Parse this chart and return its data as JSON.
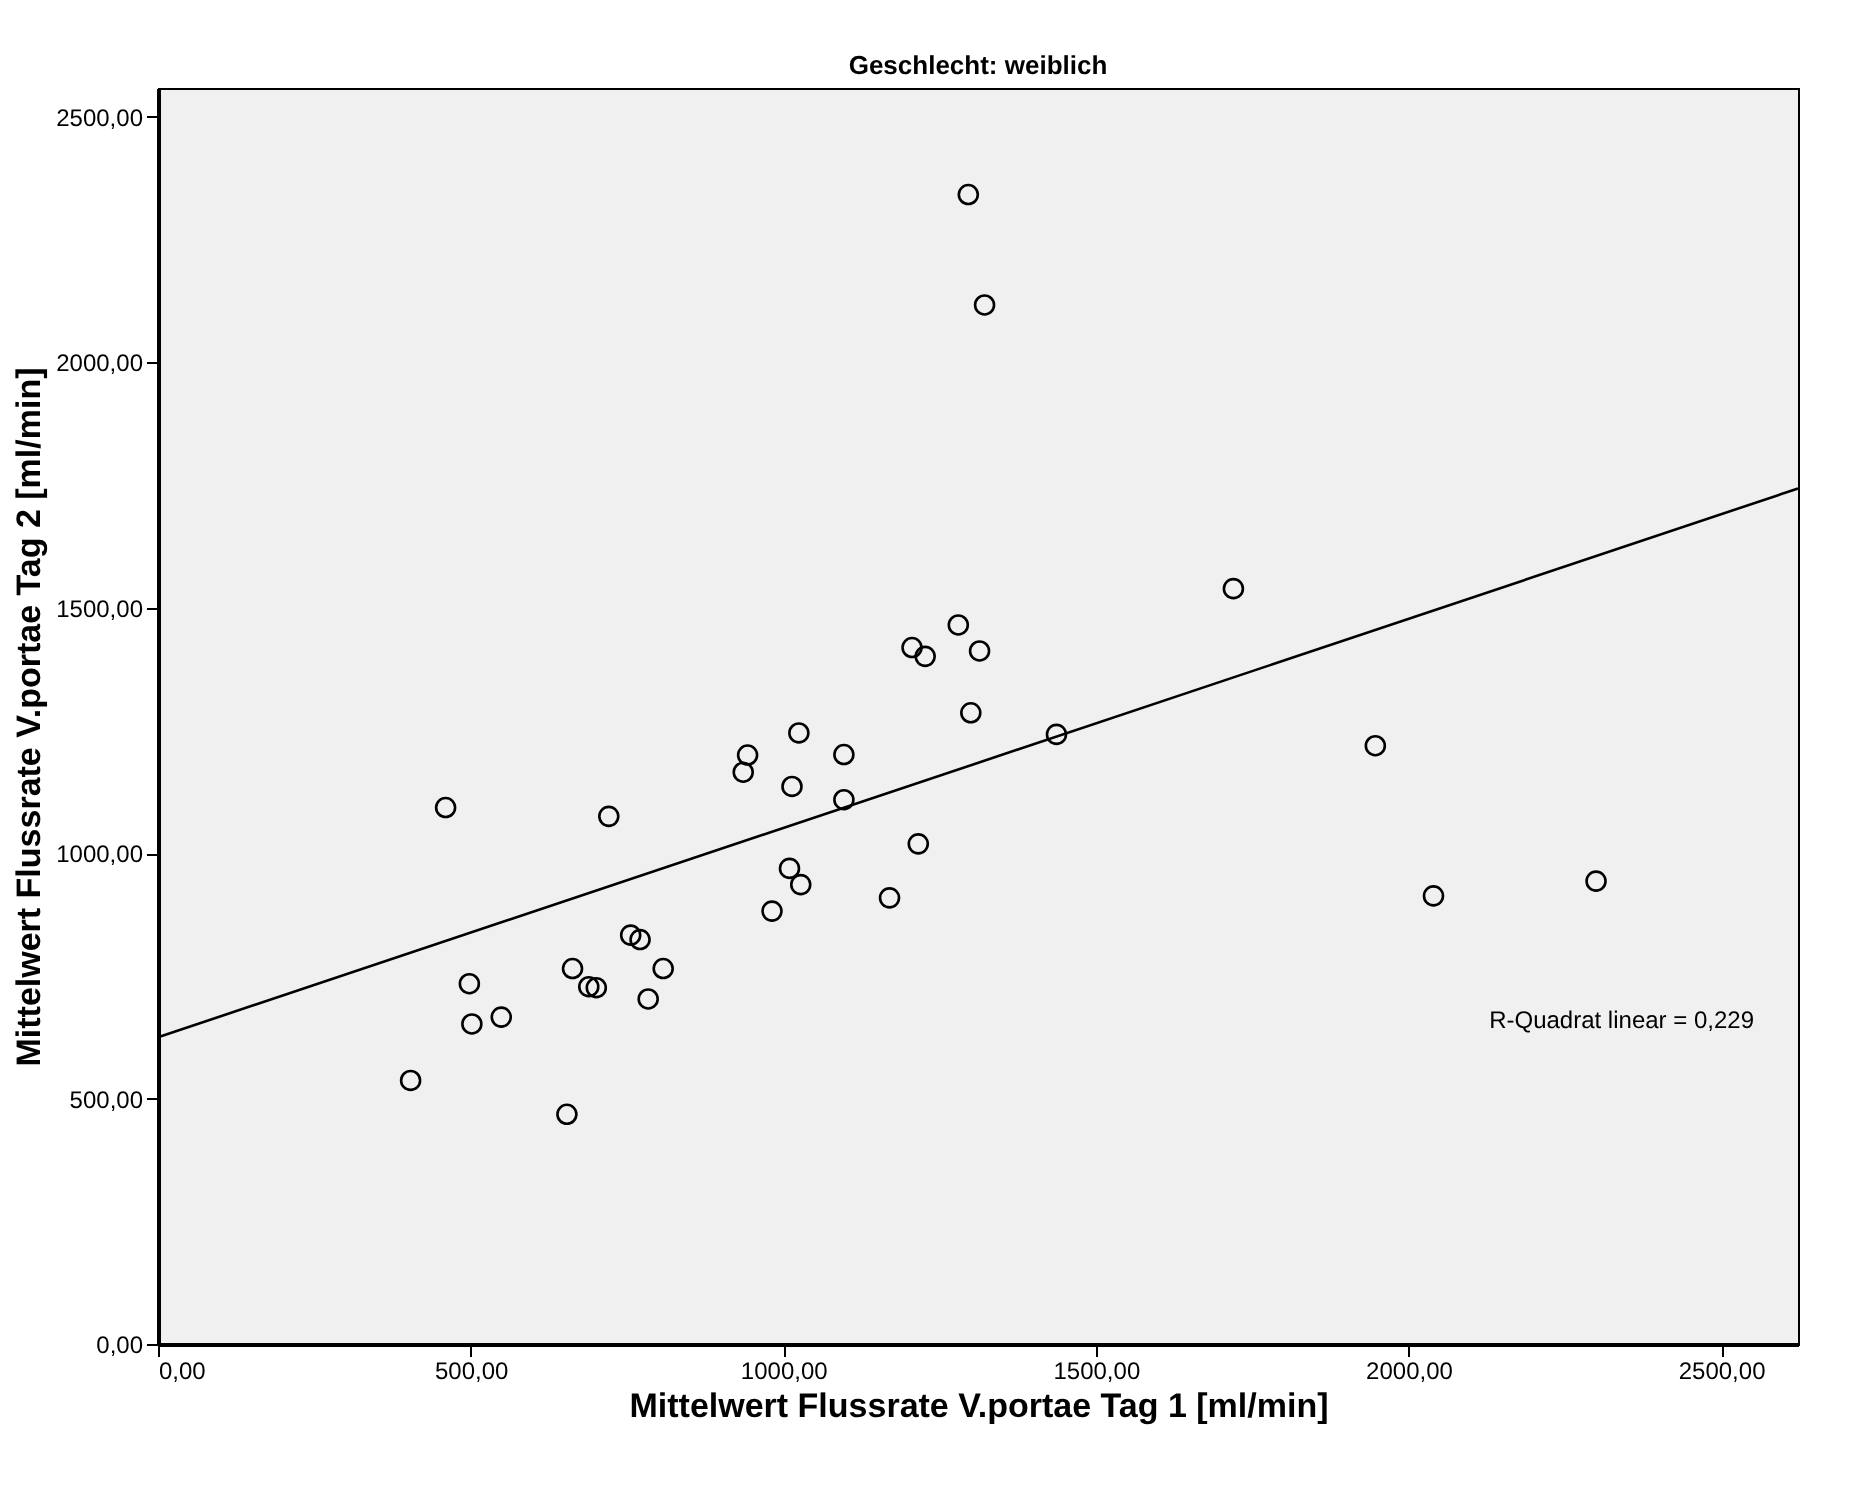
{
  "chart_data": {
    "type": "scatter",
    "title": "Geschlecht: weiblich",
    "xlabel": "Mittelwert Flussrate V.portae Tag 1 [ml/min]",
    "ylabel": "Mittelwert Flussrate V.portae Tag 2 [ml/min]",
    "series": [
      {
        "color": "#000000",
        "marker": "circle",
        "x": [
          404,
          460,
          498,
          502,
          549,
          654,
          663,
          689,
          701,
          721,
          756,
          771,
          784,
          808,
          936,
          943,
          982,
          1010,
          1014,
          1025,
          1028,
          1097,
          1097,
          1170,
          1296,
          1322,
          1720,
          1280,
          1206,
          1227,
          1314,
          1300,
          1437,
          1216,
          1947,
          2040,
          2300
        ],
        "values": [
          537,
          1093,
          734,
          652,
          666,
          468,
          765,
          728,
          726,
          1075,
          833,
          824,
          703,
          765,
          1165,
          1200,
          882,
          969,
          1136,
          1245,
          936,
          1201,
          1109,
          909,
          2342,
          2117,
          1539,
          1465,
          1419,
          1401,
          1412,
          1286,
          1242,
          1019,
          1219,
          913,
          943
        ]
      },
      {
        "type": "line",
        "color": "#000000",
        "x": [
          0,
          2623
        ],
        "values": [
          625,
          1743
        ]
      }
    ],
    "xlim": [
      0,
      2623
    ],
    "ylim": [
      0,
      2559
    ],
    "xticks": [
      {
        "value": 0,
        "label": "0,00"
      },
      {
        "value": 500,
        "label": "500,00"
      },
      {
        "value": 1000,
        "label": "1000,00"
      },
      {
        "value": 1500,
        "label": "1500,00"
      },
      {
        "value": 2000,
        "label": "2000,00"
      },
      {
        "value": 2500,
        "label": "2500,00"
      }
    ],
    "yticks": [
      {
        "value": 0,
        "label": "0,00"
      },
      {
        "value": 500,
        "label": "500,00"
      },
      {
        "value": 1000,
        "label": "1000,00"
      },
      {
        "value": 1500,
        "label": "1500,00"
      },
      {
        "value": 2000,
        "label": "2000,00"
      },
      {
        "value": 2500,
        "label": "2500,00"
      }
    ],
    "annotations": [
      "R-Quadrat linear = 0,229"
    ],
    "grid": false
  }
}
